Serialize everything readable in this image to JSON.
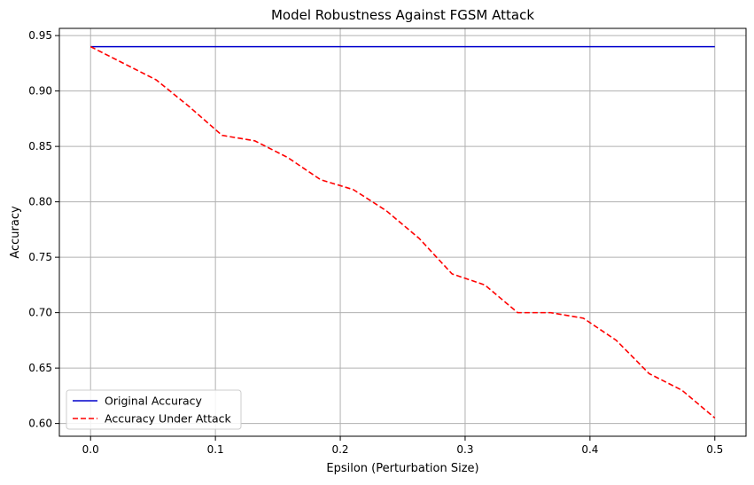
{
  "chart_data": {
    "type": "line",
    "title": "Model Robustness Against FGSM Attack",
    "xlabel": "Epsilon (Perturbation Size)",
    "ylabel": "Accuracy",
    "xlim": [
      -0.025,
      0.525
    ],
    "ylim": [
      0.5885,
      0.9565
    ],
    "x_ticks": [
      0.0,
      0.1,
      0.2,
      0.3,
      0.4,
      0.5
    ],
    "x_tick_labels": [
      "0.0",
      "0.1",
      "0.2",
      "0.3",
      "0.4",
      "0.5"
    ],
    "y_ticks": [
      0.6,
      0.65,
      0.7,
      0.75,
      0.8,
      0.85,
      0.9,
      0.95
    ],
    "y_tick_labels": [
      "0.60",
      "0.65",
      "0.70",
      "0.75",
      "0.80",
      "0.85",
      "0.90",
      "0.95"
    ],
    "grid": true,
    "legend_position": "lower-left",
    "series": [
      {
        "name": "Original Accuracy",
        "color": "#0000cc",
        "style": "solid",
        "x": [
          0.0,
          0.5
        ],
        "y": [
          0.94,
          0.94
        ]
      },
      {
        "name": "Accuracy Under Attack",
        "color": "#ff0000",
        "style": "dashed",
        "x": [
          0.0,
          0.0263,
          0.0526,
          0.0789,
          0.1053,
          0.1316,
          0.1579,
          0.1842,
          0.2105,
          0.2368,
          0.2632,
          0.2895,
          0.3158,
          0.3421,
          0.3684,
          0.3947,
          0.4211,
          0.4474,
          0.4737,
          0.5
        ],
        "y": [
          0.94,
          0.925,
          0.91,
          0.886,
          0.86,
          0.855,
          0.84,
          0.82,
          0.811,
          0.792,
          0.767,
          0.735,
          0.725,
          0.7,
          0.7,
          0.695,
          0.675,
          0.645,
          0.63,
          0.605
        ]
      }
    ]
  }
}
